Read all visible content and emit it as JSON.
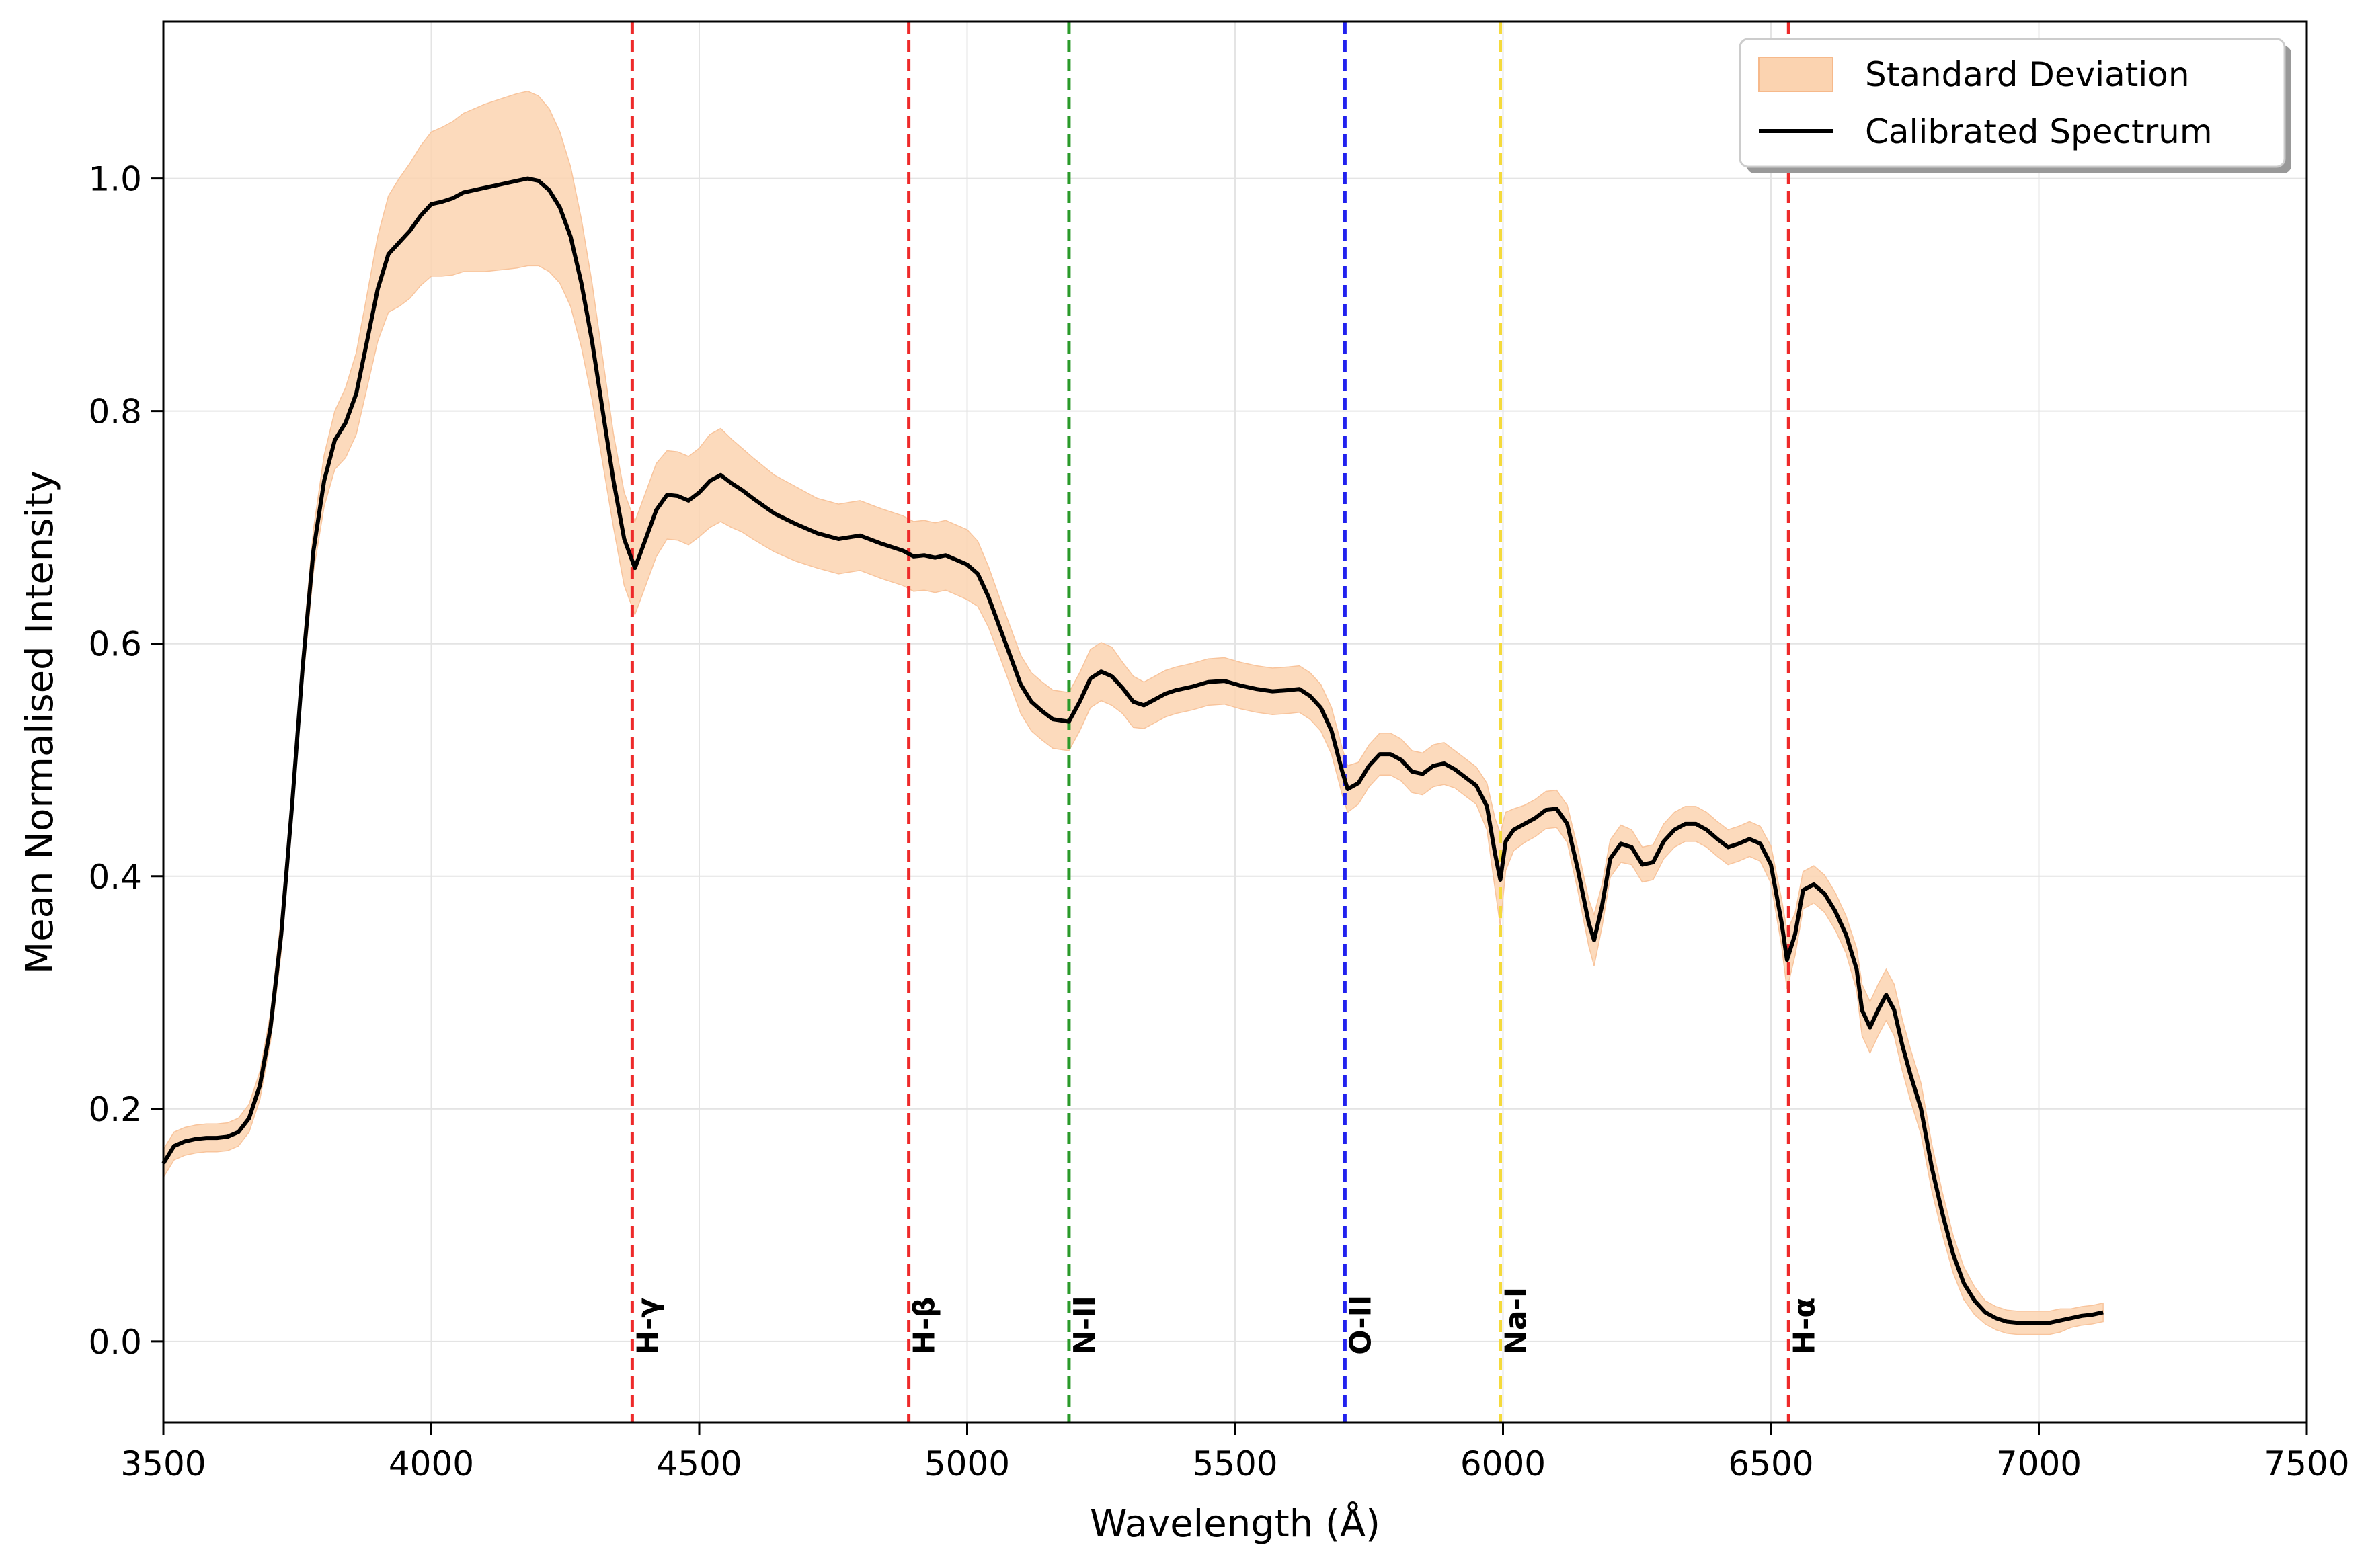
{
  "chart_data": {
    "type": "line",
    "title": "",
    "xlabel": "Wavelength (Å)",
    "ylabel": "Mean Normalised Intensity",
    "xlim": [
      3500,
      7500
    ],
    "ylim": [
      -0.07,
      1.135
    ],
    "xticks": [
      3500,
      4000,
      4500,
      5000,
      5500,
      6000,
      6500,
      7000,
      7500
    ],
    "yticks": [
      0.0,
      0.2,
      0.4,
      0.6,
      0.8,
      1.0
    ],
    "grid": true,
    "legend": {
      "placement": "top-right",
      "entries": [
        {
          "label": "Standard Deviation",
          "kind": "band",
          "color": "#fbd3b0"
        },
        {
          "label": "Calibrated Spectrum",
          "kind": "line",
          "color": "#000000"
        }
      ]
    },
    "series": [
      {
        "name": "Calibrated Spectrum",
        "color": "#000000",
        "x": [
          3500,
          3520,
          3540,
          3560,
          3580,
          3600,
          3620,
          3640,
          3660,
          3680,
          3700,
          3720,
          3740,
          3760,
          3780,
          3800,
          3820,
          3840,
          3860,
          3880,
          3900,
          3920,
          3940,
          3960,
          3980,
          4000,
          4020,
          4040,
          4060,
          4080,
          4100,
          4120,
          4140,
          4160,
          4180,
          4200,
          4220,
          4240,
          4260,
          4280,
          4300,
          4320,
          4340,
          4360,
          4380,
          4400,
          4420,
          4440,
          4460,
          4480,
          4500,
          4520,
          4540,
          4560,
          4580,
          4600,
          4640,
          4680,
          4720,
          4760,
          4800,
          4840,
          4880,
          4900,
          4920,
          4940,
          4960,
          4980,
          5000,
          5020,
          5040,
          5060,
          5080,
          5100,
          5120,
          5140,
          5160,
          5190,
          5210,
          5230,
          5250,
          5270,
          5290,
          5310,
          5330,
          5350,
          5370,
          5390,
          5420,
          5450,
          5480,
          5510,
          5540,
          5570,
          5600,
          5620,
          5640,
          5660,
          5680,
          5700,
          5710,
          5730,
          5750,
          5770,
          5790,
          5810,
          5830,
          5850,
          5870,
          5890,
          5910,
          5930,
          5950,
          5970,
          5985,
          5995,
          6005,
          6020,
          6040,
          6060,
          6080,
          6100,
          6120,
          6140,
          6160,
          6170,
          6185,
          6200,
          6220,
          6240,
          6260,
          6280,
          6300,
          6320,
          6340,
          6360,
          6380,
          6400,
          6420,
          6440,
          6460,
          6480,
          6500,
          6520,
          6530,
          6545,
          6560,
          6580,
          6600,
          6620,
          6640,
          6660,
          6670,
          6685,
          6700,
          6715,
          6730,
          6745,
          6760,
          6780,
          6800,
          6820,
          6840,
          6860,
          6880,
          6900,
          6920,
          6940,
          6960,
          6980,
          7000,
          7020,
          7040,
          7060,
          7080,
          7100,
          7120
        ],
        "y": [
          0.153,
          0.168,
          0.172,
          0.174,
          0.175,
          0.175,
          0.176,
          0.18,
          0.192,
          0.22,
          0.27,
          0.35,
          0.46,
          0.58,
          0.68,
          0.74,
          0.775,
          0.79,
          0.815,
          0.86,
          0.905,
          0.935,
          0.945,
          0.955,
          0.968,
          0.978,
          0.98,
          0.983,
          0.988,
          0.99,
          0.992,
          0.994,
          0.996,
          0.998,
          1.0,
          0.998,
          0.99,
          0.975,
          0.95,
          0.91,
          0.86,
          0.8,
          0.74,
          0.69,
          0.665,
          0.69,
          0.715,
          0.728,
          0.727,
          0.723,
          0.73,
          0.74,
          0.745,
          0.738,
          0.732,
          0.725,
          0.712,
          0.703,
          0.695,
          0.69,
          0.693,
          0.686,
          0.68,
          0.675,
          0.676,
          0.674,
          0.676,
          0.672,
          0.668,
          0.66,
          0.64,
          0.615,
          0.59,
          0.565,
          0.55,
          0.542,
          0.535,
          0.533,
          0.55,
          0.57,
          0.576,
          0.572,
          0.562,
          0.55,
          0.547,
          0.552,
          0.557,
          0.56,
          0.563,
          0.567,
          0.568,
          0.564,
          0.561,
          0.559,
          0.56,
          0.561,
          0.555,
          0.545,
          0.525,
          0.49,
          0.475,
          0.48,
          0.495,
          0.505,
          0.505,
          0.5,
          0.49,
          0.488,
          0.495,
          0.497,
          0.492,
          0.485,
          0.478,
          0.46,
          0.42,
          0.397,
          0.43,
          0.44,
          0.445,
          0.45,
          0.457,
          0.458,
          0.445,
          0.405,
          0.36,
          0.345,
          0.375,
          0.415,
          0.428,
          0.425,
          0.41,
          0.412,
          0.43,
          0.44,
          0.445,
          0.445,
          0.44,
          0.432,
          0.425,
          0.428,
          0.432,
          0.428,
          0.41,
          0.36,
          0.328,
          0.35,
          0.388,
          0.393,
          0.385,
          0.37,
          0.35,
          0.32,
          0.285,
          0.27,
          0.285,
          0.298,
          0.285,
          0.255,
          0.23,
          0.2,
          0.15,
          0.11,
          0.075,
          0.05,
          0.035,
          0.025,
          0.02,
          0.017,
          0.016,
          0.016,
          0.016,
          0.016,
          0.018,
          0.02,
          0.022,
          0.023,
          0.025
        ]
      },
      {
        "name": "Standard Deviation",
        "color": "#fbd3b0",
        "spread": [
          0.012,
          0.012,
          0.012,
          0.012,
          0.012,
          0.012,
          0.012,
          0.012,
          0.012,
          0.012,
          0.012,
          0.015,
          0.015,
          0.015,
          0.018,
          0.022,
          0.025,
          0.03,
          0.035,
          0.04,
          0.045,
          0.05,
          0.055,
          0.058,
          0.06,
          0.062,
          0.064,
          0.066,
          0.068,
          0.07,
          0.072,
          0.073,
          0.074,
          0.075,
          0.075,
          0.073,
          0.07,
          0.065,
          0.06,
          0.055,
          0.05,
          0.045,
          0.04,
          0.04,
          0.04,
          0.04,
          0.04,
          0.038,
          0.038,
          0.038,
          0.038,
          0.04,
          0.04,
          0.038,
          0.036,
          0.035,
          0.033,
          0.032,
          0.03,
          0.03,
          0.03,
          0.03,
          0.03,
          0.03,
          0.03,
          0.03,
          0.03,
          0.03,
          0.03,
          0.028,
          0.026,
          0.025,
          0.025,
          0.025,
          0.025,
          0.025,
          0.025,
          0.025,
          0.025,
          0.025,
          0.025,
          0.025,
          0.022,
          0.022,
          0.02,
          0.02,
          0.02,
          0.02,
          0.02,
          0.02,
          0.02,
          0.02,
          0.02,
          0.02,
          0.02,
          0.02,
          0.02,
          0.02,
          0.02,
          0.02,
          0.02,
          0.018,
          0.018,
          0.018,
          0.018,
          0.018,
          0.018,
          0.018,
          0.018,
          0.018,
          0.016,
          0.016,
          0.016,
          0.02,
          0.03,
          0.04,
          0.025,
          0.018,
          0.016,
          0.016,
          0.016,
          0.016,
          0.016,
          0.018,
          0.02,
          0.022,
          0.018,
          0.016,
          0.016,
          0.015,
          0.015,
          0.015,
          0.015,
          0.015,
          0.015,
          0.015,
          0.015,
          0.015,
          0.015,
          0.015,
          0.015,
          0.015,
          0.016,
          0.02,
          0.025,
          0.018,
          0.016,
          0.016,
          0.016,
          0.016,
          0.016,
          0.018,
          0.022,
          0.022,
          0.022,
          0.022,
          0.022,
          0.022,
          0.022,
          0.022,
          0.02,
          0.018,
          0.016,
          0.014,
          0.012,
          0.01,
          0.01,
          0.01,
          0.01,
          0.01,
          0.01,
          0.01,
          0.01,
          0.008,
          0.008,
          0.008,
          0.008
        ]
      }
    ],
    "reference_lines": [
      {
        "x": 4375,
        "label": "H-γ",
        "color": "#ee2a2a"
      },
      {
        "x": 4891,
        "label": "H-β",
        "color": "#ee2a2a"
      },
      {
        "x": 5190,
        "label": "N-II",
        "color": "#2a9a2a"
      },
      {
        "x": 5705,
        "label": "O-II",
        "color": "#2222ee"
      },
      {
        "x": 5995,
        "label": "Na-I",
        "color": "#f5da3a"
      },
      {
        "x": 6533,
        "label": "H-α",
        "color": "#ee2a2a"
      }
    ]
  }
}
